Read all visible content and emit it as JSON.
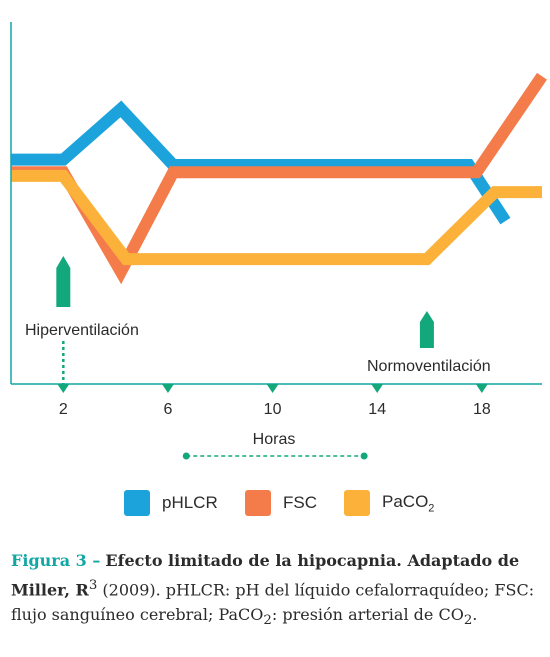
{
  "chart_data": {
    "type": "line",
    "xlabel": "Horas",
    "ylabel": "",
    "xlim": [
      0,
      20.3
    ],
    "ylim": [
      0,
      10
    ],
    "x_ticks": [
      2,
      6,
      10,
      14,
      18
    ],
    "grid": false,
    "legend_position": "bottom",
    "series": [
      {
        "name": "pHLCR",
        "color": "#1ca3dc",
        "x": [
          0,
          2,
          4.2,
          6.2,
          17.5,
          18.9
        ],
        "y": [
          6.2,
          6.2,
          7.6,
          6.05,
          6.05,
          4.5
        ]
      },
      {
        "name": "FSC",
        "color": "#f47c4b",
        "x": [
          0,
          2,
          4.2,
          6.2,
          17.8,
          20.3
        ],
        "y": [
          5.85,
          5.85,
          3.1,
          5.85,
          5.85,
          8.5
        ]
      },
      {
        "name": "PaCO2",
        "color": "#fbb13a",
        "x": [
          0,
          2,
          4.4,
          15.9,
          18.5,
          20.3
        ],
        "y": [
          5.75,
          5.75,
          3.45,
          3.45,
          5.3,
          5.3
        ]
      }
    ],
    "annotations": [
      {
        "text": "Hiperventilación",
        "x": 2
      },
      {
        "text": "Normoventilación",
        "x": 15.9
      }
    ],
    "duration_marker": {
      "from": 6.7,
      "to": 13.5
    }
  },
  "legend": [
    {
      "label": "pHLCR",
      "sub": "",
      "color": "#1ca3dc"
    },
    {
      "label": "FSC",
      "sub": "",
      "color": "#f47c4b"
    },
    {
      "label": "PaCO",
      "sub": "2",
      "color": "#fbb13a"
    }
  ],
  "caption": {
    "fig_label": "Figura 3 –",
    "title": "Efecto limitado de la hipocapnia. Adaptado de Miller, R",
    "ref_sup": "3",
    "text_1": "(2009). pHLCR: pH del líquido cefalorraquídeo; FSC: flujo sanguíneo cerebral; PaCO",
    "sub_1": "2",
    "text_2": ": presión arterial de CO",
    "sub_2": "2",
    "text_3": "."
  },
  "colors": {
    "axis": "#10a7a4",
    "arrow": "#13a87b",
    "text": "#2b2b2b",
    "accent": "#10a7a4"
  }
}
